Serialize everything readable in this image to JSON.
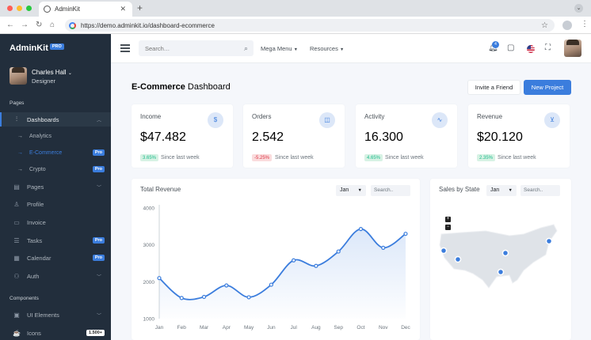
{
  "browser": {
    "tab_title": "AdminKit",
    "url": "https://demo.adminkit.io/dashboard-ecommerce",
    "traffic_lights": [
      "#ff5f57",
      "#febc2e",
      "#28c840"
    ]
  },
  "sidebar": {
    "brand": "AdminKit",
    "brand_badge": "PRO",
    "user": {
      "name": "Charles Hall",
      "role": "Designer"
    },
    "sections": {
      "pages": "Pages",
      "components": "Components"
    },
    "items": [
      {
        "label": "Dashboards",
        "icon": "sliders-icon",
        "active": true,
        "chevron": "up"
      },
      {
        "label": "Analytics",
        "sub": true
      },
      {
        "label": "E-Commerce",
        "sub": true,
        "active": true,
        "badge": "Pro"
      },
      {
        "label": "Crypto",
        "sub": true,
        "badge": "Pro"
      },
      {
        "label": "Pages",
        "icon": "layout-icon",
        "chevron": "down"
      },
      {
        "label": "Profile",
        "icon": "user-icon"
      },
      {
        "label": "Invoice",
        "icon": "credit-card-icon"
      },
      {
        "label": "Tasks",
        "icon": "list-icon",
        "badge": "Pro"
      },
      {
        "label": "Calendar",
        "icon": "calendar-icon",
        "badge": "Pro"
      },
      {
        "label": "Auth",
        "icon": "users-icon",
        "chevron": "down"
      },
      {
        "label": "UI Elements",
        "icon": "briefcase-icon",
        "chevron": "down"
      },
      {
        "label": "Icons",
        "icon": "coffee-icon",
        "badge": "1.500+"
      }
    ]
  },
  "topbar": {
    "search_placeholder": "Search…",
    "mega_menu": "Mega Menu",
    "resources": "Resources",
    "notification_count": "4"
  },
  "page": {
    "title_bold": "E-Commerce",
    "title_rest": " Dashboard",
    "invite_button": "Invite a Friend",
    "new_project_button": "New Project"
  },
  "stats": [
    {
      "title": "Income",
      "value": "$47.482",
      "delta": "3.65%",
      "delta_dir": "up",
      "since": "Since last week",
      "icon": "dollar-sign-icon"
    },
    {
      "title": "Orders",
      "value": "2.542",
      "delta": "-5.25%",
      "delta_dir": "down",
      "since": "Since last week",
      "icon": "shopping-bag-icon"
    },
    {
      "title": "Activity",
      "value": "16.300",
      "delta": "4.65%",
      "delta_dir": "up",
      "since": "Since last week",
      "icon": "activity-icon"
    },
    {
      "title": "Revenue",
      "value": "$20.120",
      "delta": "2.35%",
      "delta_dir": "up",
      "since": "Since last week",
      "icon": "shopping-cart-icon"
    }
  ],
  "revenue_panel": {
    "title": "Total Revenue",
    "month_select": "Jan",
    "search_placeholder": "Search.."
  },
  "sales_panel": {
    "title": "Sales by State",
    "month_select": "Jan",
    "search_placeholder": "Search.."
  },
  "colors": {
    "accent": "#3b7ddd",
    "sidebar": "#222e3c",
    "background": "#f5f7fb"
  },
  "chart_data": {
    "type": "line",
    "title": "Total Revenue",
    "categories": [
      "Jan",
      "Feb",
      "Mar",
      "Apr",
      "May",
      "Jun",
      "Jul",
      "Aug",
      "Sep",
      "Oct",
      "Nov",
      "Dec"
    ],
    "series": [
      {
        "values": [
          2100,
          1560,
          1590,
          1900,
          1580,
          1920,
          2580,
          2430,
          2820,
          3430,
          2920,
          3300
        ]
      }
    ],
    "yticks": [
      1000,
      2000,
      3000,
      4000
    ],
    "ylim": [
      1000,
      4000
    ],
    "grid": false,
    "fill": "area-gradient"
  }
}
